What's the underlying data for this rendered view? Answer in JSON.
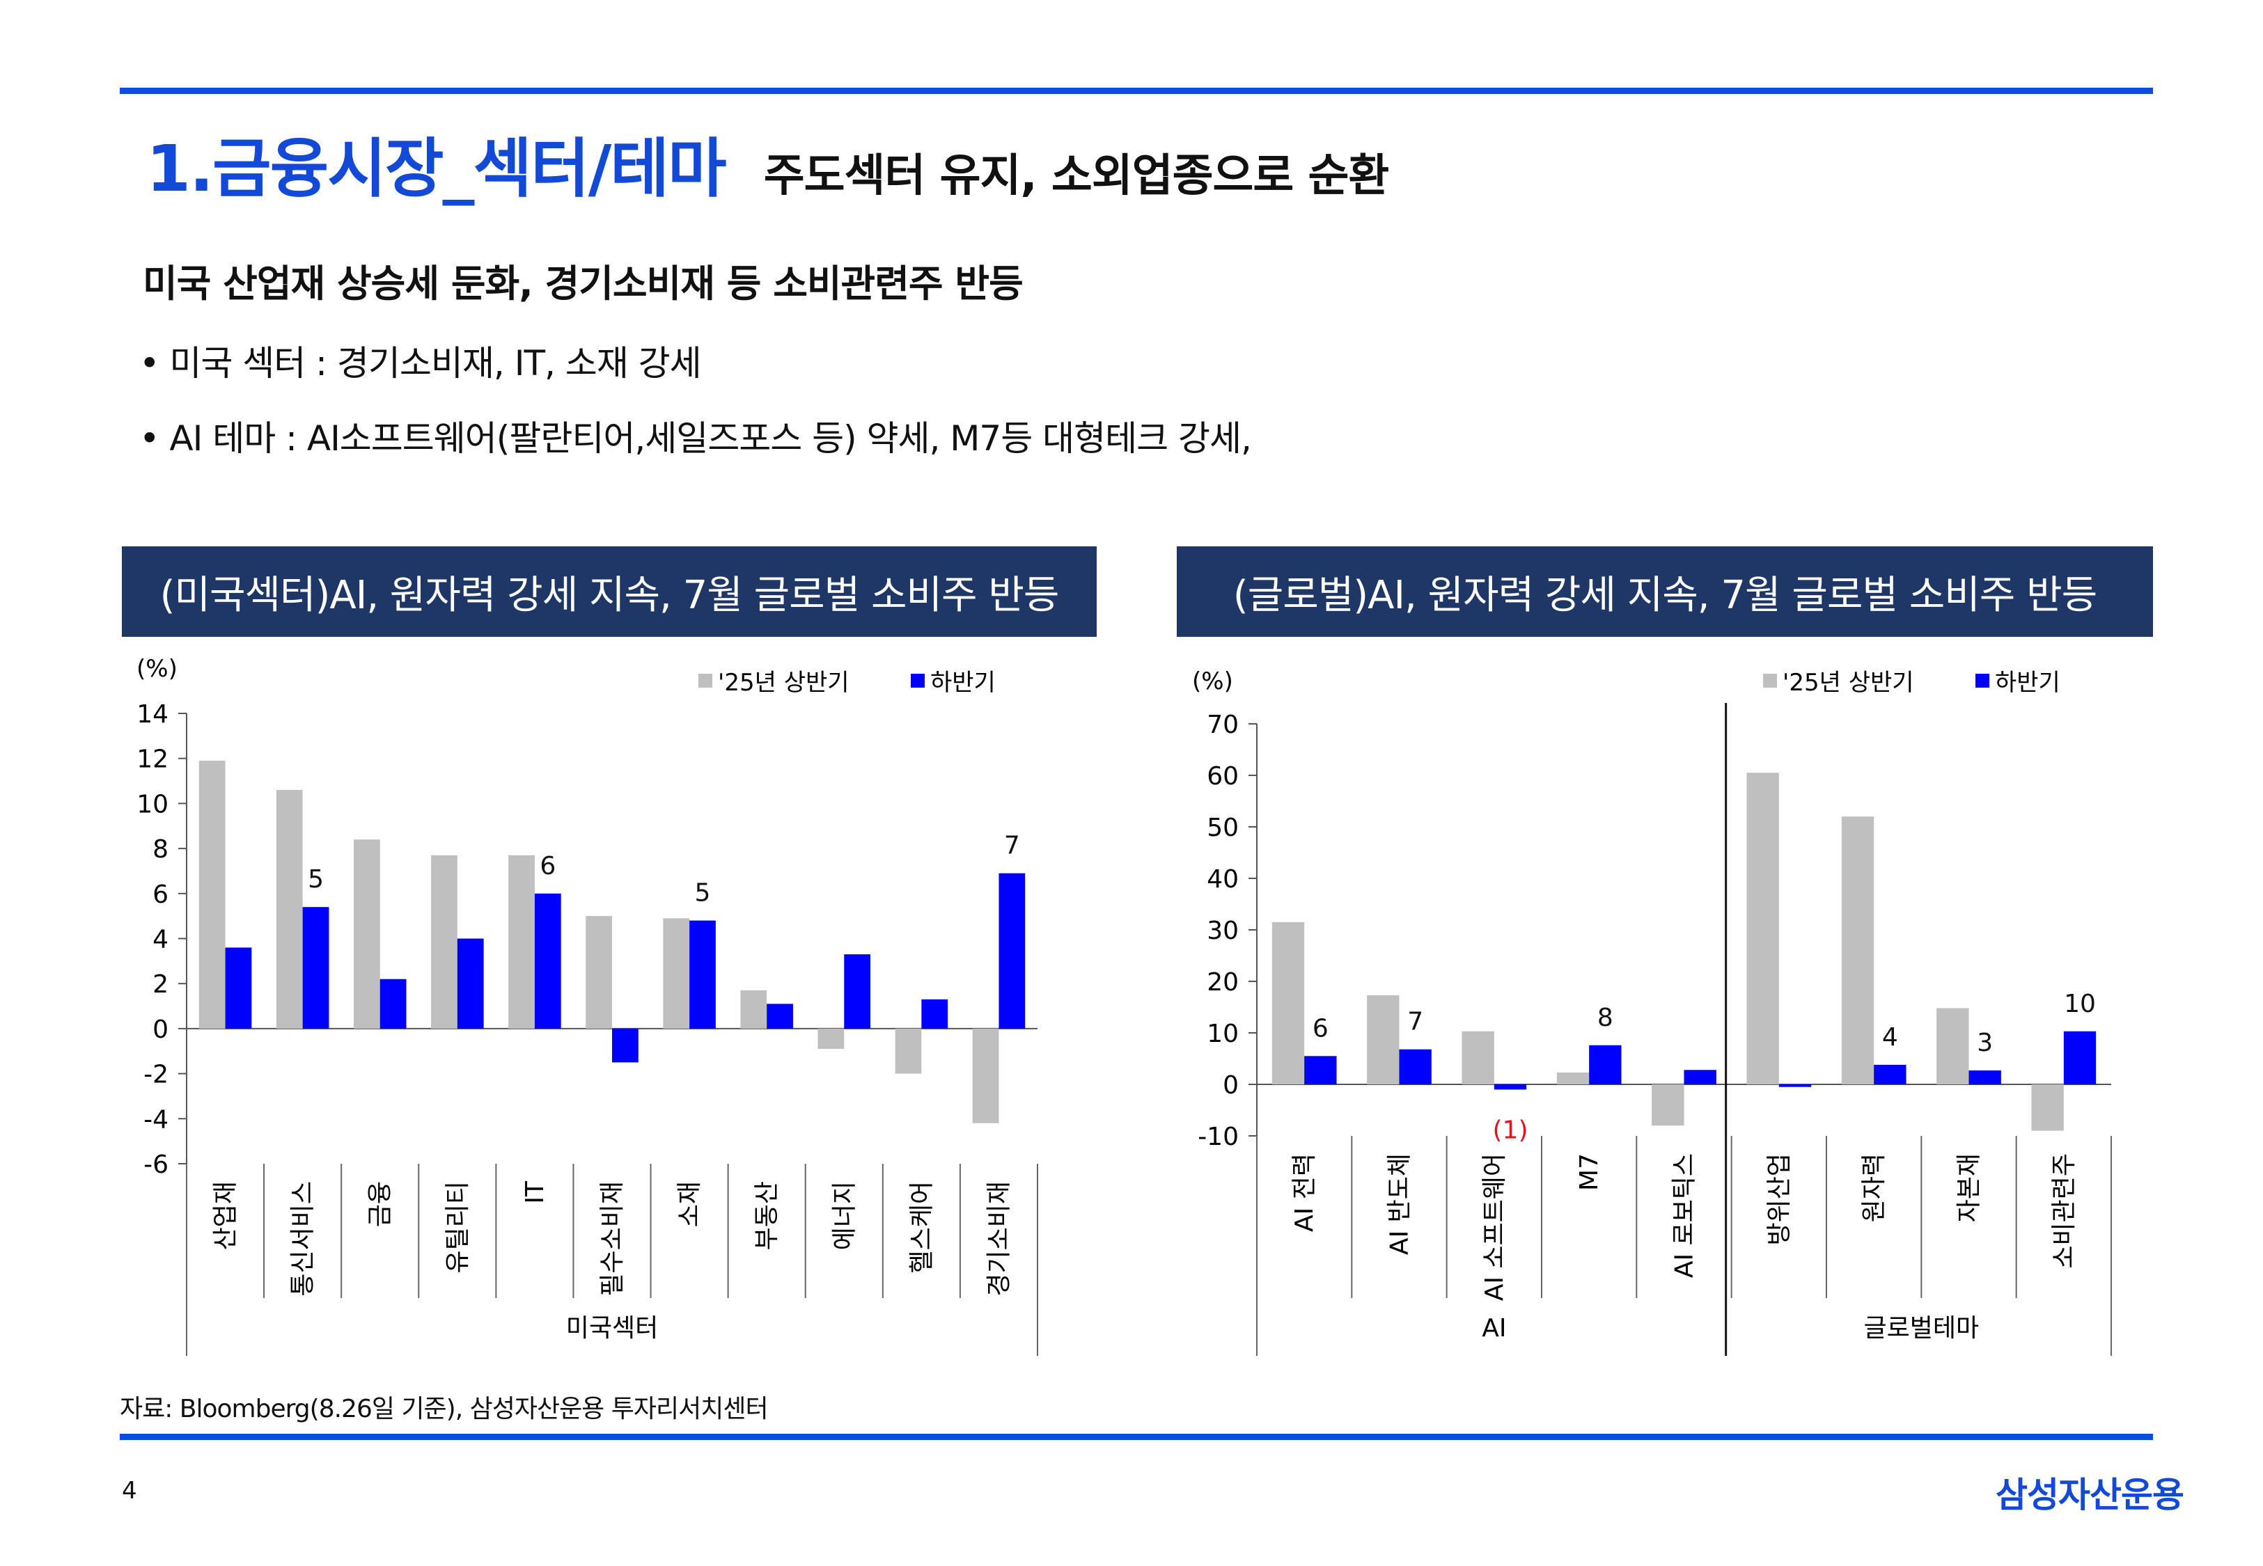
{
  "title": {
    "main": "1.금융시장_섹터/테마",
    "sub": "주도섹터 유지, 소외업종으로 순환"
  },
  "subheading": "미국 산업재 상승세 둔화, 경기소비재 등 소비관련주 반등",
  "bullets": [
    "• 미국 섹터 : 경기소비재, IT, 소재 강세",
    "• AI 테마 : AI소프트웨어(팔란티어,세일즈포스 등) 약세, M7등 대형테크 강세,"
  ],
  "colors": {
    "brand_blue": "#1249d6",
    "panel_header": "#1f3766",
    "h1_bar": "#bfbfbf",
    "h2_bar": "#0000ff",
    "negative_label": "#e0141e"
  },
  "source": "자료: Bloomberg(8.26일 기준), 삼성자산운용 투자리서치센터",
  "page_number": "4",
  "brand": "삼성자산운용",
  "chart_data": [
    {
      "type": "bar",
      "title": "(미국섹터)AI, 원자력 강세 지속, 7월 글로벌 소비주 반등",
      "unit": "(%)",
      "categories": [
        "산업재",
        "통신서비스",
        "금융",
        "유틸리티",
        "IT",
        "필수소비재",
        "소재",
        "부동산",
        "에너지",
        "헬스케어",
        "경기소비재"
      ],
      "group_label": "미국섹터",
      "series": [
        {
          "name": "'25년 상반기",
          "values": [
            11.9,
            10.6,
            8.4,
            7.7,
            7.7,
            5.0,
            4.9,
            1.7,
            -0.9,
            -2.0,
            -4.2
          ]
        },
        {
          "name": "하반기",
          "values": [
            3.6,
            5.4,
            2.2,
            4.0,
            6.0,
            -1.5,
            4.8,
            1.1,
            3.3,
            1.3,
            6.9
          ]
        }
      ],
      "data_labels": [
        {
          "category": "통신서비스",
          "text": "5"
        },
        {
          "category": "IT",
          "text": "6"
        },
        {
          "category": "소재",
          "text": "5"
        },
        {
          "category": "경기소비재",
          "text": "7"
        }
      ],
      "yticks": [
        "14",
        "12",
        "10",
        "8",
        "6",
        "4",
        "2",
        "0",
        "-2",
        "-4",
        "-6"
      ],
      "ylim": [
        -6,
        14
      ],
      "legend": "top-right"
    },
    {
      "type": "bar",
      "title": "(글로벌)AI, 원자력 강세 지속, 7월 글로벌 소비주 반등",
      "unit": "(%)",
      "categories": [
        "AI 전력",
        "AI 반도체",
        "AI 소프트웨어",
        "M7",
        "AI 로보틱스",
        "방위산업",
        "원자력",
        "자본재",
        "소비관련주"
      ],
      "groups": [
        {
          "label": "AI",
          "count": 5
        },
        {
          "label": "글로벌테마",
          "count": 4
        }
      ],
      "series": [
        {
          "name": "'25년 상반기",
          "values": [
            31.5,
            17.3,
            10.3,
            2.3,
            -8.0,
            60.5,
            52.0,
            14.8,
            -9.0
          ]
        },
        {
          "name": "하반기",
          "values": [
            5.5,
            6.8,
            -1.0,
            7.6,
            2.8,
            -0.5,
            3.8,
            2.7,
            10.3
          ]
        }
      ],
      "data_labels": [
        {
          "category": "AI 전력",
          "text": "6"
        },
        {
          "category": "AI 반도체",
          "text": "7"
        },
        {
          "category": "AI 소프트웨어",
          "text": "(1)",
          "color": "#e0141e"
        },
        {
          "category": "M7",
          "text": "8"
        },
        {
          "category": "원자력",
          "text": "4"
        },
        {
          "category": "자본재",
          "text": "3"
        },
        {
          "category": "소비관련주",
          "text": "10"
        }
      ],
      "yticks": [
        "70",
        "60",
        "50",
        "40",
        "30",
        "20",
        "10",
        "0",
        "-10"
      ],
      "ylim": [
        -10,
        70
      ],
      "legend": "top-right"
    }
  ]
}
